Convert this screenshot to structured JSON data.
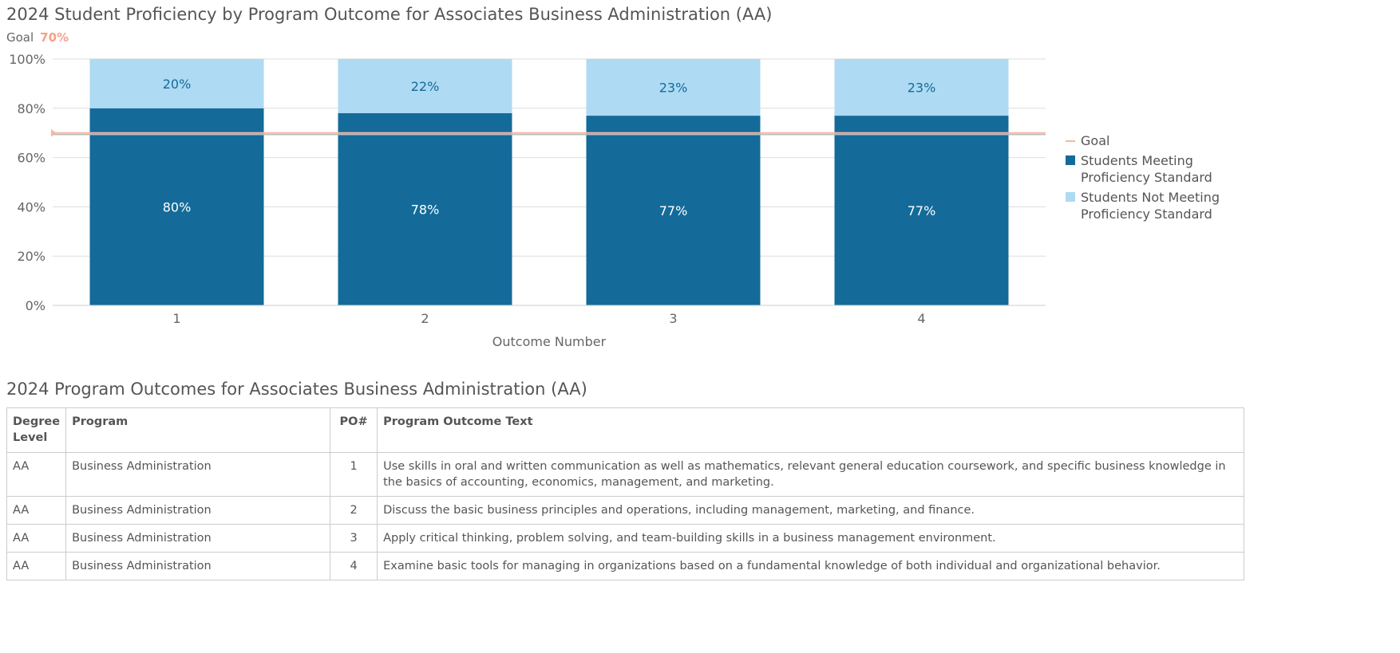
{
  "chart_data": {
    "type": "bar",
    "stacked": true,
    "title": "2024 Student Proficiency by Program Outcome for Associates Business Administration (AA)",
    "goal_label": "Goal",
    "goal_value_label": "70%",
    "goal": 70,
    "xlabel": "Outcome Number",
    "ylabel": "",
    "ylim": [
      0,
      100
    ],
    "yticks": [
      "0%",
      "20%",
      "40%",
      "60%",
      "80%",
      "100%"
    ],
    "categories": [
      "1",
      "2",
      "3",
      "4"
    ],
    "series": [
      {
        "name": "Students Meeting Proficiency Standard",
        "values": [
          80,
          78,
          77,
          77
        ],
        "labels": [
          "80%",
          "78%",
          "77%",
          "77%"
        ],
        "color": "#146b99"
      },
      {
        "name": "Students Not Meeting Proficiency Standard",
        "values": [
          20,
          22,
          23,
          23
        ],
        "labels": [
          "20%",
          "22%",
          "23%",
          "23%"
        ],
        "color": "#aedaf3"
      }
    ],
    "goal_color": "#f9b5a5",
    "grid": true,
    "legend_position": "right"
  },
  "table": {
    "title": "2024 Program Outcomes for Associates Business Administration (AA)",
    "headers": [
      "Degree Level",
      "Program",
      "PO#",
      "Program Outcome Text"
    ],
    "rows": [
      [
        "AA",
        "Business Administration",
        "1",
        "Use skills in oral and written communication as well as mathematics, relevant general education coursework, and specific business knowledge in the basics of accounting, economics, management, and marketing."
      ],
      [
        "AA",
        "Business Administration",
        "2",
        "Discuss the basic business principles and operations, including management, marketing, and finance."
      ],
      [
        "AA",
        "Business Administration",
        "3",
        "Apply critical thinking, problem solving, and team-building skills in a business management environment."
      ],
      [
        "AA",
        "Business Administration",
        "4",
        "Examine basic tools for managing in organizations based on a fundamental knowledge of both individual and organizational behavior."
      ]
    ]
  }
}
